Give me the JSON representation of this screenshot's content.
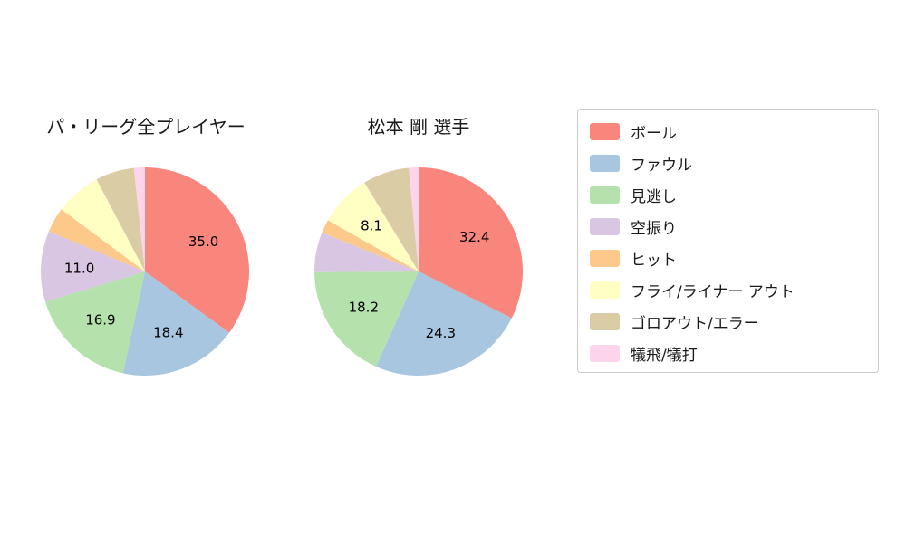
{
  "page": {
    "background": "#ffffff"
  },
  "chart_data": [
    {
      "type": "pie",
      "title": "パ・リーグ全プレイヤー",
      "start_angle": "top",
      "direction": "clockwise",
      "slices": [
        {
          "label": "ボール",
          "value": 35.0,
          "text": "35.0",
          "color": "#f8867d"
        },
        {
          "label": "ファウル",
          "value": 18.4,
          "text": "18.4",
          "color": "#a8c6df"
        },
        {
          "label": "見逃し",
          "value": 16.9,
          "text": "16.9",
          "color": "#b5e1ad"
        },
        {
          "label": "空振り",
          "value": 11.0,
          "text": "11.0",
          "color": "#d9c6e3"
        },
        {
          "label": "ヒット",
          "value": 3.9,
          "text": "",
          "color": "#fcc98b"
        },
        {
          "label": "フライ/ライナー アウト",
          "value": 7.1,
          "text": "",
          "color": "#ffffc4"
        },
        {
          "label": "ゴロアウト/エラー",
          "value": 6.0,
          "text": "",
          "color": "#dacda6"
        },
        {
          "label": "犠飛/犠打",
          "value": 1.7,
          "text": "",
          "color": "#fcd5ec"
        }
      ]
    },
    {
      "type": "pie",
      "title": "松本 剛  選手",
      "start_angle": "top",
      "direction": "clockwise",
      "slices": [
        {
          "label": "ボール",
          "value": 32.4,
          "text": "32.4",
          "color": "#f8867d"
        },
        {
          "label": "ファウル",
          "value": 24.3,
          "text": "24.3",
          "color": "#a8c6df"
        },
        {
          "label": "見逃し",
          "value": 18.2,
          "text": "18.2",
          "color": "#b5e1ad"
        },
        {
          "label": "空振り",
          "value": 6.2,
          "text": "",
          "color": "#d9c6e3"
        },
        {
          "label": "ヒット",
          "value": 2.1,
          "text": "",
          "color": "#fcc98b"
        },
        {
          "label": "フライ/ライナー アウト",
          "value": 8.1,
          "text": "8.1",
          "color": "#ffffc4"
        },
        {
          "label": "ゴロアウト/エラー",
          "value": 7.2,
          "text": "",
          "color": "#dacda6"
        },
        {
          "label": "犠飛/犠打",
          "value": 1.5,
          "text": "",
          "color": "#fcd5ec"
        }
      ]
    }
  ],
  "legend": {
    "items": [
      {
        "label": "ボール",
        "color": "#f8867d"
      },
      {
        "label": "ファウル",
        "color": "#a8c6df"
      },
      {
        "label": "見逃し",
        "color": "#b5e1ad"
      },
      {
        "label": "空振り",
        "color": "#d9c6e3"
      },
      {
        "label": "ヒット",
        "color": "#fcc98b"
      },
      {
        "label": "フライ/ライナー アウト",
        "color": "#ffffc4"
      },
      {
        "label": "ゴロアウト/エラー",
        "color": "#dacda6"
      },
      {
        "label": "犠飛/犠打",
        "color": "#fcd5ec"
      }
    ]
  }
}
